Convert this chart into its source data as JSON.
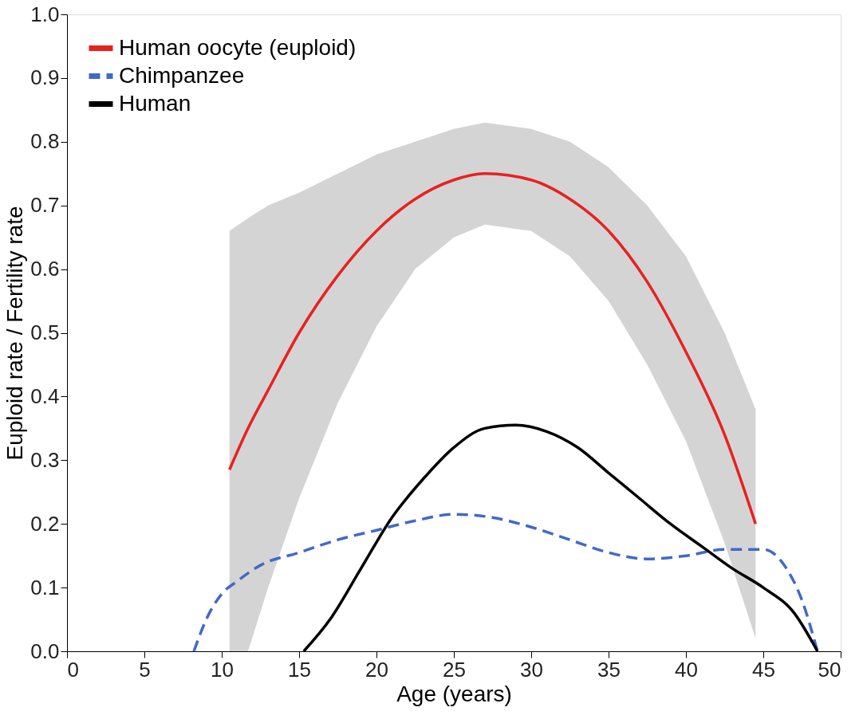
{
  "chart_data": {
    "type": "line",
    "xlabel": "Age (years)",
    "ylabel": "Euploid rate / Fertility rate",
    "xlim": [
      0,
      50
    ],
    "xticks": [
      0,
      5,
      10,
      15,
      20,
      25,
      30,
      35,
      40,
      45,
      50
    ],
    "ylim": [
      0,
      1
    ],
    "yticks": [
      {
        "value": 0,
        "label": "0.0"
      },
      {
        "value": 0.1,
        "label": "0.1"
      },
      {
        "value": 0.2,
        "label": "0.2"
      },
      {
        "value": 0.3,
        "label": "0.3"
      },
      {
        "value": 0.4,
        "label": "0.4"
      },
      {
        "value": 0.5,
        "label": "0.5"
      },
      {
        "value": 0.6,
        "label": "0.6"
      },
      {
        "value": 0.7,
        "label": "0.7"
      },
      {
        "value": 0.8,
        "label": "0.8"
      },
      {
        "value": 0.9,
        "label": "0.9"
      },
      {
        "value": 1,
        "label": "1.0"
      }
    ],
    "grid": false,
    "legend": "top left",
    "marker": "none",
    "series": [
      {
        "name": "Human oocyte (euploid)",
        "color": "#e8211f",
        "line_style": "solid",
        "x": [
          10.5,
          11.7,
          13,
          15,
          17.5,
          20,
          22.5,
          25,
          27,
          30,
          32.5,
          35,
          37.5,
          40,
          42.5,
          44.5
        ],
        "values": [
          0.285,
          0.35,
          0.41,
          0.5,
          0.59,
          0.66,
          0.71,
          0.74,
          0.75,
          0.74,
          0.71,
          0.66,
          0.58,
          0.47,
          0.34,
          0.2
        ],
        "lower": [
          0,
          0,
          0.1,
          0.24,
          0.39,
          0.51,
          0.6,
          0.65,
          0.67,
          0.66,
          0.62,
          0.55,
          0.45,
          0.33,
          0.17,
          0.02
        ],
        "upper": [
          0.66,
          0.68,
          0.7,
          0.72,
          0.75,
          0.78,
          0.8,
          0.82,
          0.83,
          0.82,
          0.8,
          0.76,
          0.7,
          0.62,
          0.5,
          0.38
        ]
      },
      {
        "name": "Chimpanzee",
        "color": "#4169c8",
        "line_style": "dashed",
        "x": [
          8.2,
          9,
          10,
          11,
          12.5,
          15,
          17.5,
          20,
          22.5,
          25,
          27.5,
          30,
          32.5,
          35,
          37.5,
          40,
          42.5,
          45,
          46.5,
          47.5,
          48.5
        ],
        "values": [
          0,
          0.05,
          0.09,
          0.11,
          0.135,
          0.155,
          0.175,
          0.19,
          0.205,
          0.215,
          0.21,
          0.195,
          0.175,
          0.155,
          0.145,
          0.15,
          0.16,
          0.16,
          0.13,
          0.08,
          0
        ]
      },
      {
        "name": "Human",
        "color": "#000000",
        "line_style": "solid",
        "x": [
          15.3,
          17,
          19,
          21,
          23,
          25,
          27,
          29,
          31,
          33,
          35,
          37,
          39,
          41,
          43,
          45,
          47,
          48.5
        ],
        "values": [
          0,
          0.05,
          0.13,
          0.21,
          0.27,
          0.32,
          0.35,
          0.355,
          0.345,
          0.32,
          0.28,
          0.24,
          0.2,
          0.165,
          0.13,
          0.1,
          0.06,
          0
        ]
      }
    ]
  }
}
